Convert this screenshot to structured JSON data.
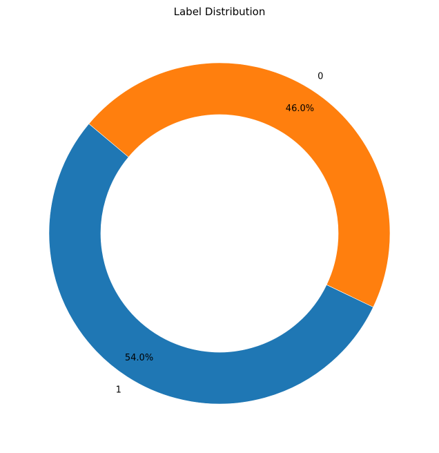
{
  "chart_data": {
    "type": "pie",
    "title": "Label Distribution",
    "labels": [
      "1",
      "0"
    ],
    "values": [
      54.0,
      46.0
    ],
    "percent_labels": [
      "54.0%",
      "46.0%"
    ],
    "colors": [
      "#1f77b4",
      "#ff7f0e"
    ],
    "donut": true,
    "start_angle_deg": 140,
    "direction": "counterclockwise",
    "legend": "none"
  }
}
